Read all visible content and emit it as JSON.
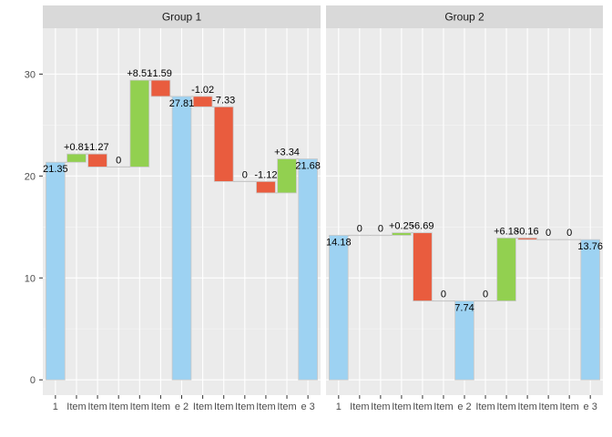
{
  "chart_data": {
    "type": "waterfall",
    "ylim": [
      -1.5,
      34.5
    ],
    "yticks": [
      0,
      10,
      20,
      30
    ],
    "colors": {
      "total": "#9dd2f2",
      "increase": "#92d050",
      "decrease": "#e95c3e",
      "zero": "#c8c8c8",
      "border": "#c8c8c8",
      "panel": "#ebebeb",
      "strip": "#d9d9d9",
      "grid_major": "#ffffff",
      "grid_minor": "#f5f5f5"
    },
    "panels": [
      {
        "title": "Group 1",
        "steps": [
          {
            "tick": "1",
            "type": "total",
            "start": 0,
            "end": 21.35,
            "label": "21.35"
          },
          {
            "tick": "Item",
            "type": "increase",
            "start": 21.35,
            "end": 22.16,
            "label": "+0.81"
          },
          {
            "tick": "Item",
            "type": "decrease",
            "start": 22.16,
            "end": 20.89,
            "label": "-1.27"
          },
          {
            "tick": "Item",
            "type": "zero",
            "start": 20.89,
            "end": 20.89,
            "label": "0"
          },
          {
            "tick": "Item",
            "type": "increase",
            "start": 20.89,
            "end": 29.4,
            "label": "+8.51"
          },
          {
            "tick": "Item",
            "type": "decrease",
            "start": 29.4,
            "end": 27.81,
            "label": "-1.59"
          },
          {
            "tick": "e 2",
            "type": "total",
            "start": 0,
            "end": 27.81,
            "label": "27.81"
          },
          {
            "tick": "Item",
            "type": "decrease",
            "start": 27.81,
            "end": 26.79,
            "label": "-1.02"
          },
          {
            "tick": "Item",
            "type": "decrease",
            "start": 26.79,
            "end": 19.46,
            "label": "-7.33"
          },
          {
            "tick": "Item",
            "type": "zero",
            "start": 19.46,
            "end": 19.46,
            "label": "0"
          },
          {
            "tick": "Item",
            "type": "decrease",
            "start": 19.46,
            "end": 18.34,
            "label": "-1.12"
          },
          {
            "tick": "Item",
            "type": "increase",
            "start": 18.34,
            "end": 21.68,
            "label": "+3.34"
          },
          {
            "tick": "e 3",
            "type": "total",
            "start": 0,
            "end": 21.68,
            "label": "21.68"
          }
        ]
      },
      {
        "title": "Group 2",
        "steps": [
          {
            "tick": "1",
            "type": "total",
            "start": 0,
            "end": 14.18,
            "label": "14.18"
          },
          {
            "tick": "Item",
            "type": "zero",
            "start": 14.18,
            "end": 14.18,
            "label": "0"
          },
          {
            "tick": "Item",
            "type": "zero",
            "start": 14.18,
            "end": 14.18,
            "label": "0"
          },
          {
            "tick": "Item",
            "type": "increase",
            "start": 14.18,
            "end": 14.43,
            "label": "+0.25"
          },
          {
            "tick": "Item",
            "type": "decrease",
            "start": 14.43,
            "end": 7.74,
            "label": "-6.69"
          },
          {
            "tick": "Item",
            "type": "zero",
            "start": 7.74,
            "end": 7.74,
            "label": "0"
          },
          {
            "tick": "e 2",
            "type": "total",
            "start": 0,
            "end": 7.74,
            "label": "7.74"
          },
          {
            "tick": "Item",
            "type": "zero",
            "start": 7.74,
            "end": 7.74,
            "label": "0"
          },
          {
            "tick": "Item",
            "type": "increase",
            "start": 7.74,
            "end": 13.92,
            "label": "+6.18"
          },
          {
            "tick": "Item",
            "type": "decrease",
            "start": 13.92,
            "end": 13.76,
            "label": "-0.16"
          },
          {
            "tick": "Item",
            "type": "zero",
            "start": 13.76,
            "end": 13.76,
            "label": "0"
          },
          {
            "tick": "Item",
            "type": "zero",
            "start": 13.76,
            "end": 13.76,
            "label": "0"
          },
          {
            "tick": "e 3",
            "type": "total",
            "start": 0,
            "end": 13.76,
            "label": "13.76"
          }
        ]
      }
    ]
  }
}
